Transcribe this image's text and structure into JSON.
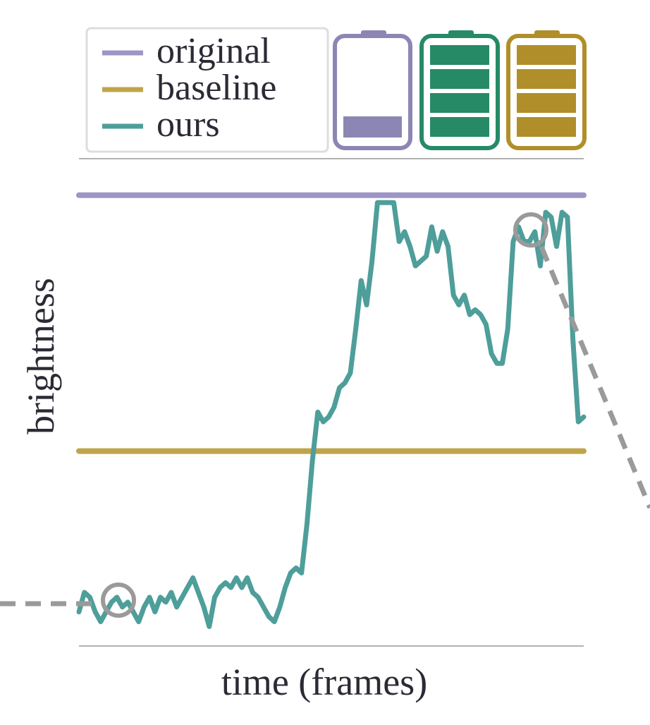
{
  "chart_data": {
    "type": "line",
    "x_label": "time (frames)",
    "y_label": "brightness",
    "ylim": [
      0,
      100
    ],
    "series": [
      {
        "name": "original",
        "color": "#9d95c6",
        "values": [
          92.5,
          92.5
        ]
      },
      {
        "name": "baseline",
        "color": "#bfa44a",
        "values": [
          40,
          40
        ]
      },
      {
        "name": "ours",
        "color": "#4e9e9a",
        "values": [
          7,
          11,
          10,
          7,
          5,
          7,
          9,
          10,
          8,
          9,
          7,
          5,
          8,
          10,
          7,
          10,
          9,
          11,
          8,
          10,
          12,
          14,
          11,
          8,
          4,
          10,
          12,
          13,
          12,
          14,
          12,
          14,
          11,
          10,
          8,
          6,
          5,
          8,
          12,
          15,
          16,
          15,
          25,
          38,
          48,
          46,
          47,
          49,
          53,
          54,
          56,
          65,
          75,
          70,
          79,
          91,
          91,
          91,
          91,
          83,
          85,
          82,
          78,
          79,
          80,
          86,
          81,
          85,
          82,
          72,
          70,
          72,
          68,
          69,
          68,
          66,
          60,
          58,
          58,
          65,
          83,
          86,
          83,
          83,
          85,
          78,
          89,
          88,
          82,
          89,
          88,
          63,
          46,
          47
        ]
      }
    ],
    "legend": "top-left"
  }
}
